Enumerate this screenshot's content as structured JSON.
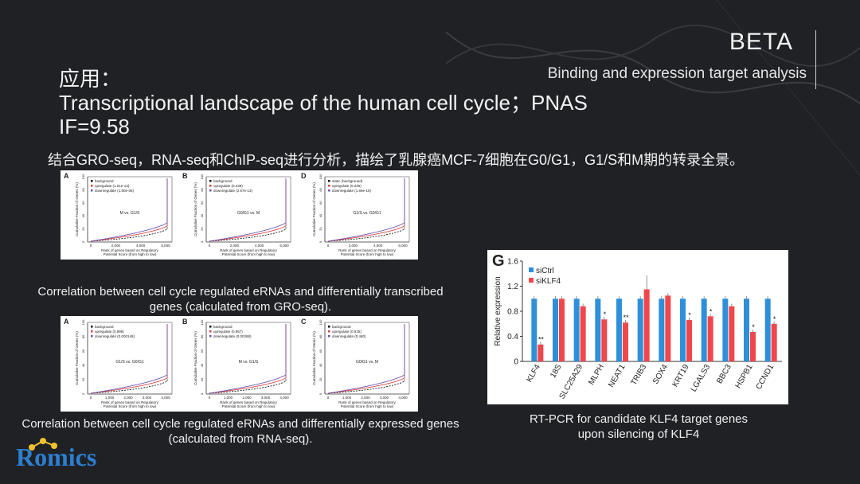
{
  "brand": {
    "name": "BETA",
    "subtitle": "Binding and expression target analysis"
  },
  "title": {
    "line1": "应用：",
    "line2": "Transcriptional landscape of the human cell cycle；PNAS",
    "line3": "IF=9.58"
  },
  "description": "结合GRO-seq，RNA-seq和ChIP-seq进行分析，描绘了乳腺癌MCF-7细胞在G0/G1，G1/S和M期的转录全景。",
  "top_panels": [
    {
      "letter": "A",
      "legend": [
        "background",
        "upregulate (1.01e-13)",
        "downregulate (1.80e-06)"
      ],
      "label": "M vs. G1/S",
      "xticks": [
        "0",
        "2,000",
        "4,000",
        "6,000"
      ]
    },
    {
      "letter": "B",
      "legend": [
        "background",
        "upregulate (0.439)",
        "downregulate (2.67e-13)"
      ],
      "label": "G0/G1 vs. M",
      "xticks": [
        "0",
        "2,000",
        "4,000",
        "6,000"
      ]
    },
    {
      "letter": "D",
      "legend": [
        "static (background)",
        "upregulate (0.245)",
        "downregulate (1.69e-15)"
      ],
      "label": "G1/S vs. G0/G1",
      "xticks": [
        "0",
        "2,000",
        "4,000",
        "6,000"
      ]
    }
  ],
  "bottom_panels": [
    {
      "letter": "A",
      "legend": [
        "background",
        "upregulate (0.898)",
        "downregulate (0.000148)"
      ],
      "label": "G1/S vs. G0/G1",
      "xticks": [
        "0",
        "1,000",
        "2,000",
        "3,000",
        "4,000"
      ]
    },
    {
      "letter": "B",
      "legend": [
        "background",
        "upregulate (0.957)",
        "downregulate (0.00288)"
      ],
      "label": "M vs. G1/S",
      "xticks": [
        "0",
        "1,000",
        "2,000",
        "3,000",
        "4,000"
      ]
    },
    {
      "letter": "C",
      "legend": [
        "background",
        "upregulate (0.915)",
        "downregulate (0.460)"
      ],
      "label": "G0/G1 vs. M",
      "xticks": [
        "0",
        "1,000",
        "2,000",
        "3,000",
        "4,000"
      ]
    }
  ],
  "panel_axes": {
    "ylabel": "Cumulative Fraction of Genes (%)",
    "xlabel1": "Rank of genes based on Regulatory",
    "xlabel2": "Potential Score (from high to low)",
    "yticks": [
      "0",
      "20",
      "40",
      "60",
      "80",
      "100"
    ]
  },
  "caption_top": "Correlation between cell cycle regulated eRNAs and differentially transcribed genes (calculated from GRO-seq).",
  "caption_bottom": "Correlation between cell cycle regulated  eRNAs and differentially expressed genes  (calculated from RNA-seq).",
  "caption_right": "RT-PCR for candidate KLF4 target genes upon silencing of KLF4",
  "logo": "Romics",
  "chart_data": {
    "type": "bar",
    "panel_letter": "G",
    "ylabel": "Relative expression",
    "ylim": [
      0,
      1.6
    ],
    "yticks": [
      "0",
      "0.4",
      "0.8",
      "1.2",
      "1.6"
    ],
    "categories": [
      "KLF4",
      "18S",
      "SLC25A29",
      "MLPH",
      "NEAT1",
      "TRIB3",
      "SOX4",
      "KRT19",
      "LGALS3",
      "BBC3",
      "HSPB1",
      "CCND1"
    ],
    "series": [
      {
        "name": "siCtrl",
        "color": "#2f8fd8",
        "values": [
          1.0,
          1.0,
          1.0,
          1.0,
          1.0,
          1.0,
          1.0,
          1.0,
          1.0,
          1.0,
          1.0,
          1.0
        ]
      },
      {
        "name": "siKLF4",
        "color": "#f0474c",
        "values": [
          0.27,
          1.0,
          0.88,
          0.67,
          0.62,
          1.15,
          1.05,
          0.66,
          0.72,
          0.88,
          0.47,
          0.6
        ]
      }
    ],
    "significance": [
      "**",
      "",
      "",
      "*",
      "**",
      "",
      "",
      "*",
      "*",
      "",
      "*",
      "*"
    ]
  }
}
